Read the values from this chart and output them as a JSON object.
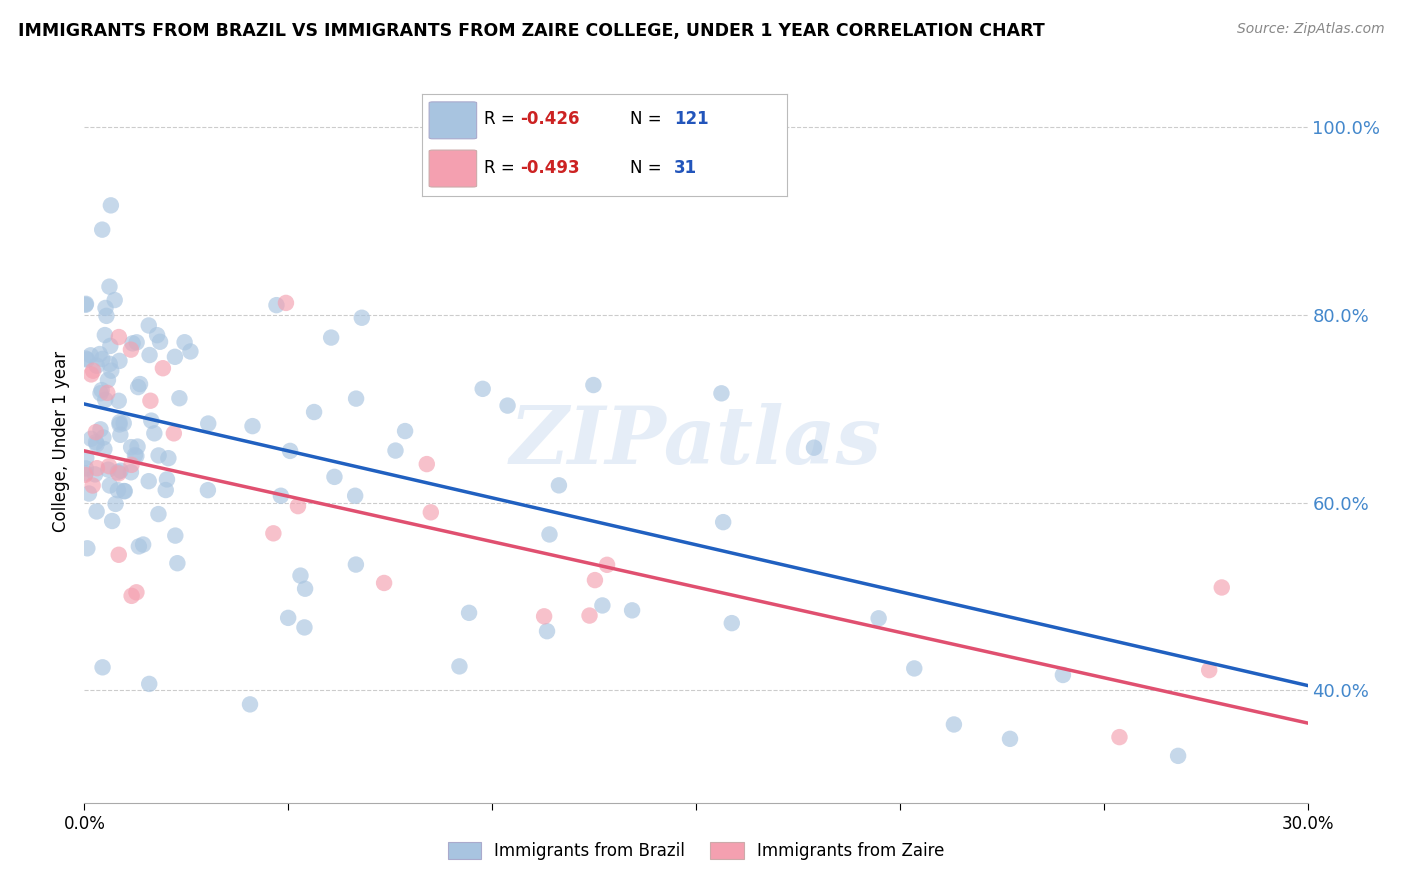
{
  "title": "IMMIGRANTS FROM BRAZIL VS IMMIGRANTS FROM ZAIRE COLLEGE, UNDER 1 YEAR CORRELATION CHART",
  "source": "Source: ZipAtlas.com",
  "ylabel": "College, Under 1 year",
  "ytick_right_labels": [
    "100.0%",
    "80.0%",
    "60.0%",
    "40.0%"
  ],
  "ytick_right_values": [
    1.0,
    0.8,
    0.6,
    0.4
  ],
  "brazil_R": -0.426,
  "brazil_N": 121,
  "zaire_R": -0.493,
  "zaire_N": 31,
  "brazil_color": "#a8c4e0",
  "zaire_color": "#f4a0b0",
  "brazil_line_color": "#2060c0",
  "zaire_line_color": "#e05070",
  "xmin": 0.0,
  "xmax": 0.3,
  "ymin": 0.28,
  "ymax": 1.05,
  "grid_color": "#cccccc",
  "background_color": "#ffffff",
  "watermark": "ZIPatlas",
  "legend_brazil_label": "Immigrants from Brazil",
  "legend_zaire_label": "Immigrants from Zaire",
  "brazil_line_y0": 0.705,
  "brazil_line_y1": 0.405,
  "zaire_line_y0": 0.655,
  "zaire_line_y1": 0.365
}
